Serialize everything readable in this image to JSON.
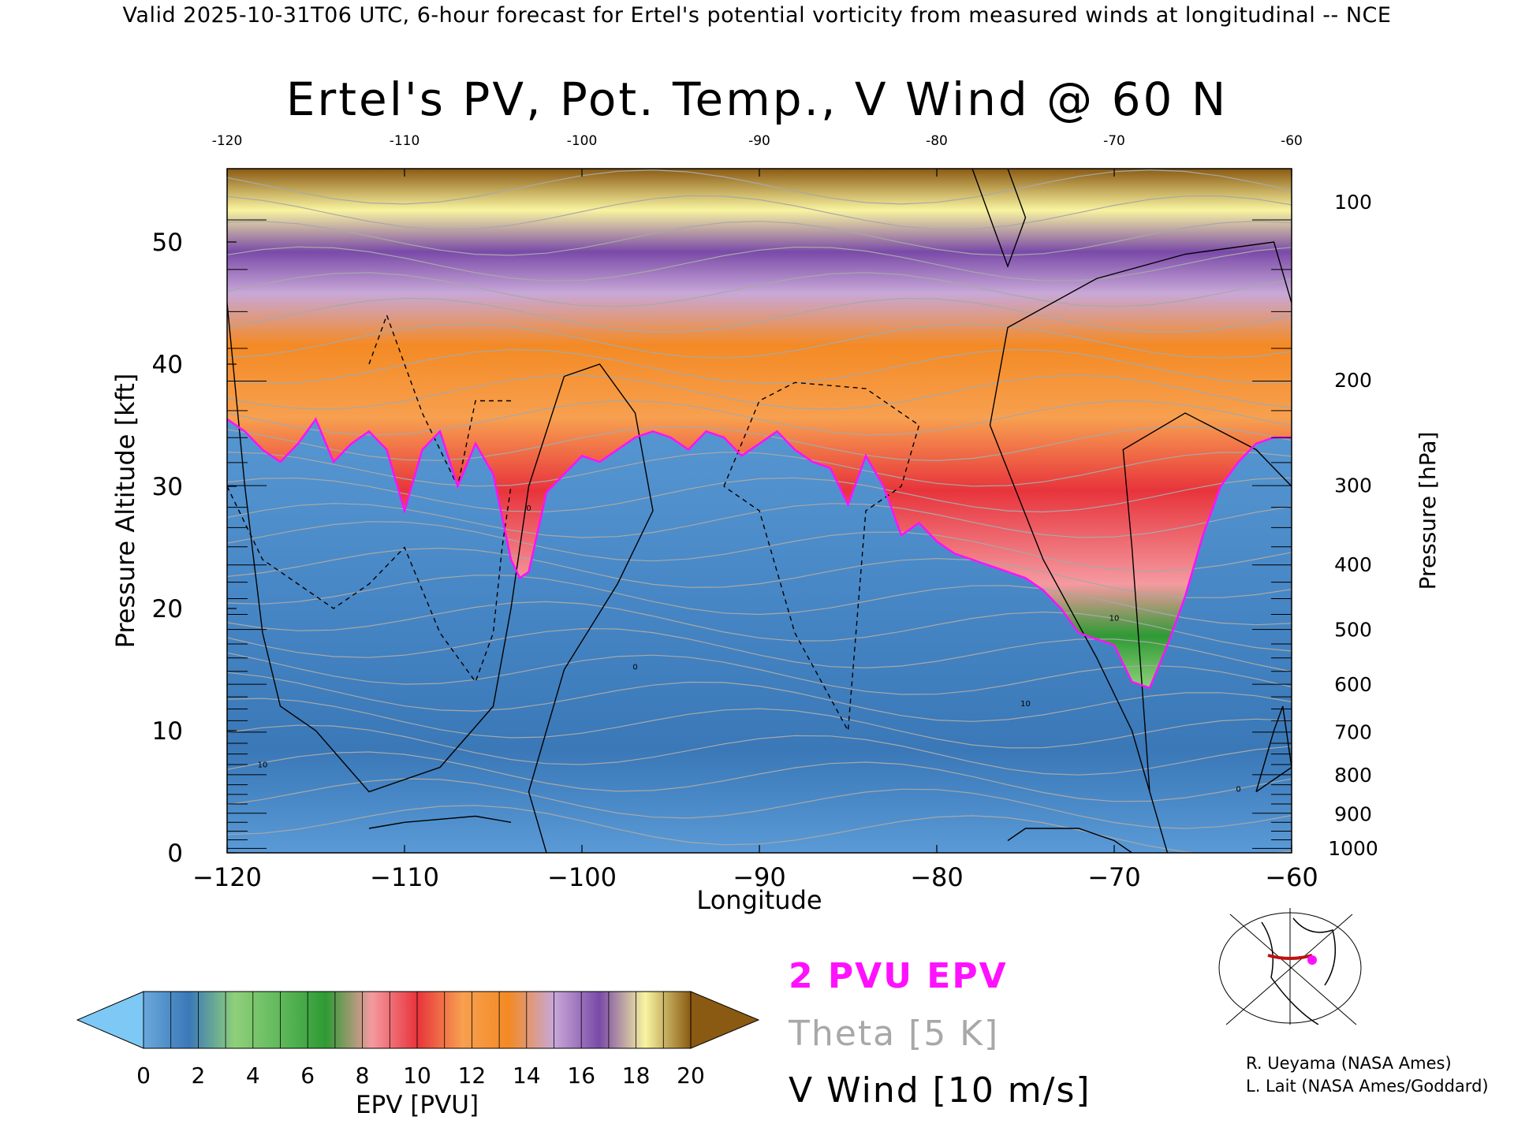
{
  "header": "Valid 2025-10-31T06 UTC, 6-hour forecast for Ertel's potential vorticity from measured winds at longitudinal -- NCE",
  "colors": {
    "pv_line": "#ff10ff",
    "theta": "#a8a8a8",
    "wind": "#000000",
    "epv_scale": [
      "#7dc8f4",
      "#6aa8dc",
      "#3a78b8",
      "#8fd07a",
      "#5fb95a",
      "#2e9a34",
      "#f49aa0",
      "#e8343c",
      "#f7a050",
      "#f48a24",
      "#c8a8d8",
      "#7a4aa8",
      "#f8f4a0",
      "#8a5a12"
    ]
  },
  "chart_data": {
    "type": "heatmap",
    "title": "Ertel's PV, Pot. Temp., V Wind @ 60 N",
    "xlabel": "Longitude",
    "ylabel": "Pressure Altitude [kft]",
    "y2label": "Pressure [hPa]",
    "xlim": [
      -120,
      -60
    ],
    "ylim": [
      0,
      56
    ],
    "x_ticks": [
      -120,
      -110,
      -100,
      -90,
      -80,
      -70,
      -60
    ],
    "x_tick_labels": [
      "−120",
      "−110",
      "−100",
      "−90",
      "−80",
      "−70",
      "−60"
    ],
    "top_tick_labels": [
      "-120",
      "-110",
      "-100",
      "-90",
      "-80",
      "-70",
      "-60"
    ],
    "y_ticks": [
      0,
      10,
      20,
      30,
      40,
      50
    ],
    "pressure_ticks": [
      {
        "hPa": 1000,
        "kft": 0.4
      },
      {
        "hPa": 900,
        "kft": 3.2
      },
      {
        "hPa": 800,
        "kft": 6.4
      },
      {
        "hPa": 700,
        "kft": 9.9
      },
      {
        "hPa": 600,
        "kft": 13.8
      },
      {
        "hPa": 500,
        "kft": 18.3
      },
      {
        "hPa": 400,
        "kft": 23.6
      },
      {
        "hPa": 300,
        "kft": 30.1
      },
      {
        "hPa": 200,
        "kft": 38.7
      },
      {
        "hPa": 100,
        "kft": 53.3
      }
    ],
    "series": [
      {
        "name": "2 PVU EPV",
        "x": [
          -120,
          -119,
          -118,
          -117,
          -116,
          -115,
          -114,
          -113,
          -112,
          -111,
          -110,
          -109,
          -108,
          -107,
          -106,
          -105,
          -104,
          -103.5,
          -103,
          -102,
          -101,
          -100,
          -99,
          -98,
          -97,
          -96,
          -95,
          -94,
          -93,
          -92,
          -91,
          -90,
          -89,
          -88,
          -87,
          -86,
          -85,
          -84,
          -83,
          -82,
          -81,
          -80,
          -79,
          -78,
          -77,
          -76,
          -75,
          -74,
          -73,
          -72,
          -71,
          -70,
          -69,
          -68,
          -67,
          -66,
          -65,
          -64,
          -63,
          -62,
          -61,
          -60
        ],
        "y": [
          35.5,
          34.5,
          33.0,
          32.0,
          33.5,
          35.5,
          32.0,
          33.5,
          34.5,
          33.0,
          28.0,
          33.0,
          34.5,
          30.0,
          33.5,
          31.0,
          24.0,
          22.5,
          23.0,
          29.5,
          31.0,
          32.5,
          32.0,
          33.0,
          34.0,
          34.5,
          34.0,
          33.0,
          34.5,
          34.0,
          32.5,
          33.5,
          34.5,
          33.0,
          32.0,
          31.5,
          28.5,
          32.5,
          30.0,
          26.0,
          27.0,
          25.5,
          24.5,
          24.0,
          23.5,
          23.0,
          22.5,
          21.5,
          20.0,
          18.0,
          17.5,
          17.0,
          14.0,
          13.5,
          17.0,
          21.0,
          26.0,
          30.0,
          32.0,
          33.5,
          34.0,
          34.0
        ]
      }
    ],
    "wind_contour_labels": [
      "0",
      "10"
    ],
    "colorbar": {
      "label": "EPV [PVU]",
      "ticks": [
        "0",
        "2",
        "4",
        "6",
        "8",
        "10",
        "12",
        "14",
        "16",
        "18",
        "20"
      ]
    },
    "legend": [
      "2 PVU EPV",
      "Theta [5 K]",
      "V Wind [10 m/s]"
    ]
  },
  "credits": [
    "R. Ueyama (NASA Ames)",
    "L. Lait (NASA Ames/Goddard)"
  ]
}
